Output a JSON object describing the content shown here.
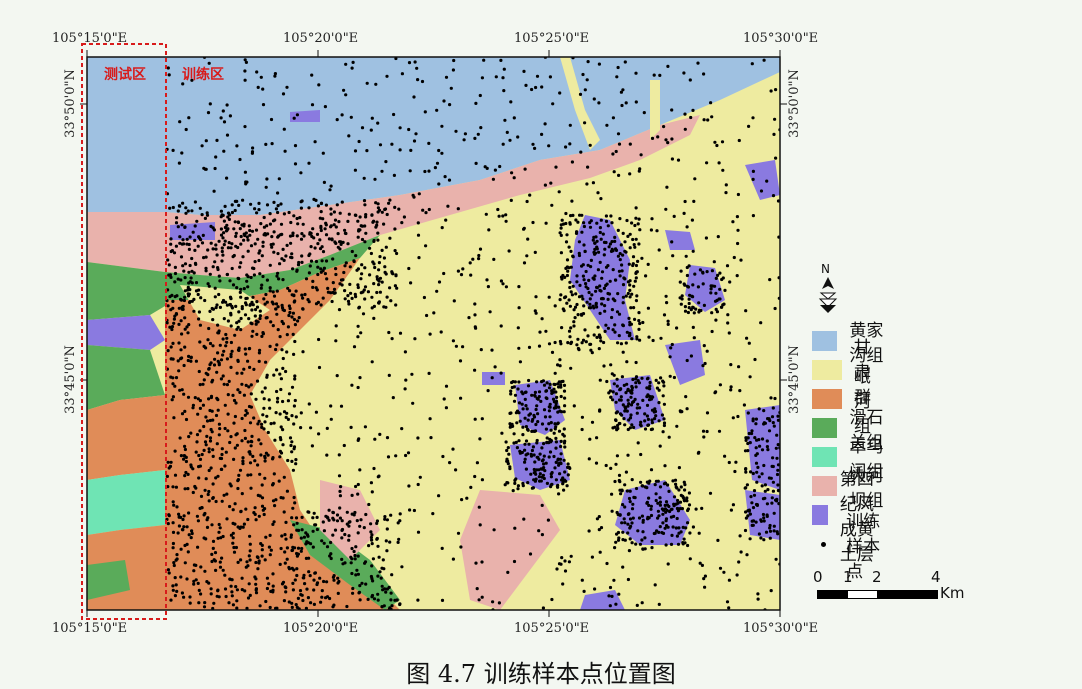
{
  "coords": {
    "top_lon": [
      "105°15'0\"E",
      "105°20'0\"E",
      "105°25'0\"E",
      "105°30'0\"E"
    ],
    "bottom_lon": [
      "105°15'0\"E",
      "105°20'0\"E",
      "105°25'0\"E",
      "105°30'0\"E"
    ],
    "left_lat": [
      "33°50'0\"N",
      "33°45'0\"N"
    ],
    "right_lat": [
      "33°50'0\"N",
      "33°45'0\"N"
    ]
  },
  "zones": {
    "test": "测试区",
    "train": "训练区"
  },
  "legend": [
    {
      "label": "黄家沟组",
      "color": "#9fc1e1"
    },
    {
      "label": "甘肃群",
      "color": "#eeeba0"
    },
    {
      "label": "岷河组",
      "color": "#e08c58"
    },
    {
      "label": "滑石关组",
      "color": "#5aab5a"
    },
    {
      "label": "卓乌阔组",
      "color": "#6fe4b4"
    },
    {
      "label": "大河坝组",
      "color": "#e9b2ac"
    },
    {
      "label": "第四纪风成黄土层",
      "color": "#8a7ae0"
    },
    {
      "label": "训练样本点",
      "color": "#000000"
    }
  ],
  "scale": {
    "ticks": [
      "0",
      "1",
      "2",
      "4"
    ],
    "unit": "Km"
  },
  "north_arrow": {
    "label": "N",
    "icon": "north-arrow-icon"
  },
  "caption": "图 4.7  训练样本点位置图"
}
